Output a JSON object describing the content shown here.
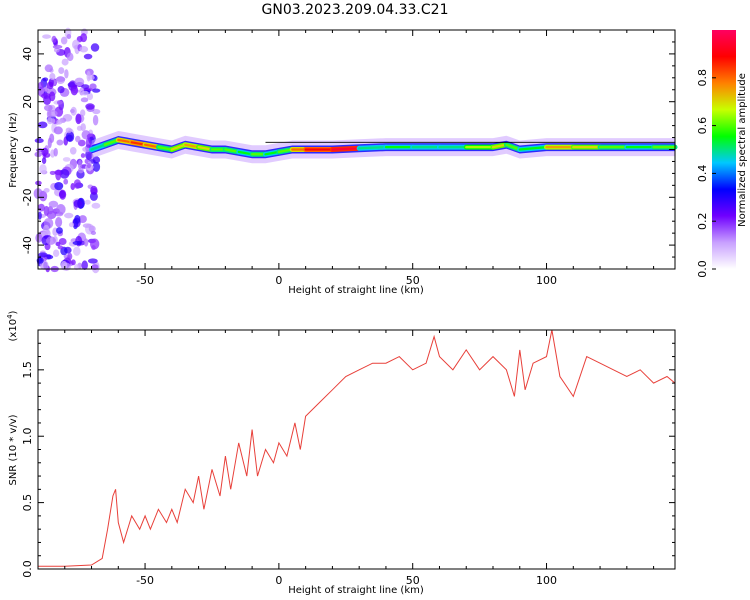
{
  "title": "GN03.2023.209.04.33.C21",
  "chart_data": [
    {
      "type": "heatmap",
      "xlabel": "Height of straight line (km)",
      "ylabel": "Frequency (Hz)",
      "xlim": [
        -90,
        148
      ],
      "ylim": [
        -50,
        50
      ],
      "xticks": [
        -50,
        0,
        50,
        100
      ],
      "yticks": [
        -40,
        -20,
        0,
        20,
        40
      ],
      "colorbar": {
        "label": "Normalized spectral amplitude",
        "range": [
          0,
          1
        ],
        "ticks": [
          "0.0",
          "0.2",
          "0.4",
          "0.6",
          "0.8"
        ],
        "colors": [
          "#ffffff",
          "#c8a0ff",
          "#7000ff",
          "#0000ff",
          "#00c8ff",
          "#00ff00",
          "#c8ff00",
          "#ff8000",
          "#ff0000",
          "#ff0060"
        ]
      },
      "ridge": {
        "x": [
          -70,
          -65,
          -60,
          -55,
          -50,
          -45,
          -40,
          -35,
          -30,
          -25,
          -20,
          -15,
          -10,
          -5,
          0,
          5,
          10,
          20,
          30,
          40,
          50,
          60,
          70,
          80,
          85,
          90,
          100,
          110,
          120,
          130,
          140,
          148
        ],
        "freq": [
          0,
          2,
          4,
          3,
          2,
          1,
          0,
          2,
          1,
          0,
          0,
          -1,
          -2,
          -2,
          -1,
          0,
          0,
          0,
          0.5,
          1,
          1,
          1,
          1,
          1,
          2,
          0,
          1,
          1,
          1,
          1,
          1,
          1
        ],
        "amplitude": [
          0.5,
          0.6,
          0.8,
          0.85,
          0.8,
          0.6,
          0.7,
          0.75,
          0.7,
          0.6,
          0.6,
          0.55,
          0.6,
          0.55,
          0.6,
          0.8,
          0.9,
          0.95,
          0.5,
          0.55,
          0.5,
          0.5,
          0.65,
          0.7,
          0.6,
          0.55,
          0.75,
          0.7,
          0.6,
          0.55,
          0.6,
          0.6
        ]
      }
    },
    {
      "type": "line",
      "xlabel": "Height of straight line (km)",
      "ylabel": "SNR (10 * v/v)",
      "exponent_label": "(x10",
      "exponent_sup": "4",
      "exponent_close": ")",
      "xlim": [
        -90,
        148
      ],
      "ylim": [
        0,
        1.8
      ],
      "xticks": [
        -50,
        0,
        50,
        100
      ],
      "yticks": [
        "0.0",
        "0.5",
        "1.0",
        "1.5"
      ],
      "line_color": "#e8403a",
      "x": [
        -90,
        -80,
        -70,
        -66,
        -64,
        -62,
        -61,
        -60,
        -58,
        -55,
        -52,
        -50,
        -48,
        -45,
        -42,
        -40,
        -38,
        -35,
        -32,
        -30,
        -28,
        -25,
        -22,
        -20,
        -18,
        -15,
        -12,
        -10,
        -8,
        -5,
        -2,
        0,
        3,
        6,
        8,
        10,
        15,
        20,
        25,
        30,
        35,
        40,
        45,
        50,
        55,
        58,
        60,
        65,
        70,
        75,
        80,
        85,
        88,
        90,
        92,
        95,
        100,
        102,
        105,
        110,
        115,
        120,
        125,
        130,
        135,
        140,
        145,
        148
      ],
      "y": [
        0.02,
        0.02,
        0.03,
        0.08,
        0.3,
        0.55,
        0.6,
        0.35,
        0.2,
        0.4,
        0.3,
        0.4,
        0.3,
        0.45,
        0.35,
        0.45,
        0.35,
        0.6,
        0.5,
        0.7,
        0.45,
        0.75,
        0.55,
        0.85,
        0.6,
        0.95,
        0.7,
        1.05,
        0.7,
        0.9,
        0.8,
        0.95,
        0.85,
        1.1,
        0.9,
        1.15,
        1.25,
        1.35,
        1.45,
        1.5,
        1.55,
        1.55,
        1.6,
        1.5,
        1.55,
        1.75,
        1.6,
        1.5,
        1.65,
        1.5,
        1.6,
        1.5,
        1.3,
        1.65,
        1.35,
        1.55,
        1.6,
        1.8,
        1.45,
        1.3,
        1.6,
        1.55,
        1.5,
        1.45,
        1.5,
        1.4,
        1.45,
        1.4
      ]
    }
  ]
}
